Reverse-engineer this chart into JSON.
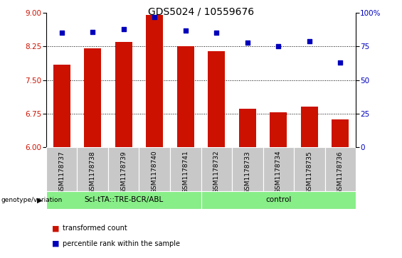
{
  "title": "GDS5024 / 10559676",
  "samples": [
    "GSM1178737",
    "GSM1178738",
    "GSM1178739",
    "GSM1178740",
    "GSM1178741",
    "GSM1178732",
    "GSM1178733",
    "GSM1178734",
    "GSM1178735",
    "GSM1178736"
  ],
  "bar_values": [
    7.85,
    8.2,
    8.35,
    8.95,
    8.25,
    8.15,
    6.85,
    6.78,
    6.9,
    6.62
  ],
  "dot_values": [
    85,
    86,
    88,
    97,
    87,
    85,
    78,
    75,
    79,
    63
  ],
  "ylim_left": [
    6,
    9
  ],
  "ylim_right": [
    0,
    100
  ],
  "yticks_left": [
    6,
    6.75,
    7.5,
    8.25,
    9
  ],
  "yticks_right": [
    0,
    25,
    50,
    75,
    100
  ],
  "bar_color": "#CC1100",
  "dot_color": "#0000BB",
  "grid_values": [
    6.75,
    7.5,
    8.25
  ],
  "group1_label": "Scl-tTA::TRE-BCR/ABL",
  "group2_label": "control",
  "group1_indices": [
    0,
    1,
    2,
    3,
    4
  ],
  "group2_indices": [
    5,
    6,
    7,
    8,
    9
  ],
  "group_bg_color": "#88EE88",
  "tick_bg_color": "#C8C8C8",
  "legend_bar_label": "transformed count",
  "legend_dot_label": "percentile rank within the sample",
  "genotype_label": "genotype/variation",
  "title_fontsize": 10,
  "axis_fontsize": 7.5,
  "tick_fontsize": 6.5,
  "group_fontsize": 7.5,
  "legend_fontsize": 7
}
